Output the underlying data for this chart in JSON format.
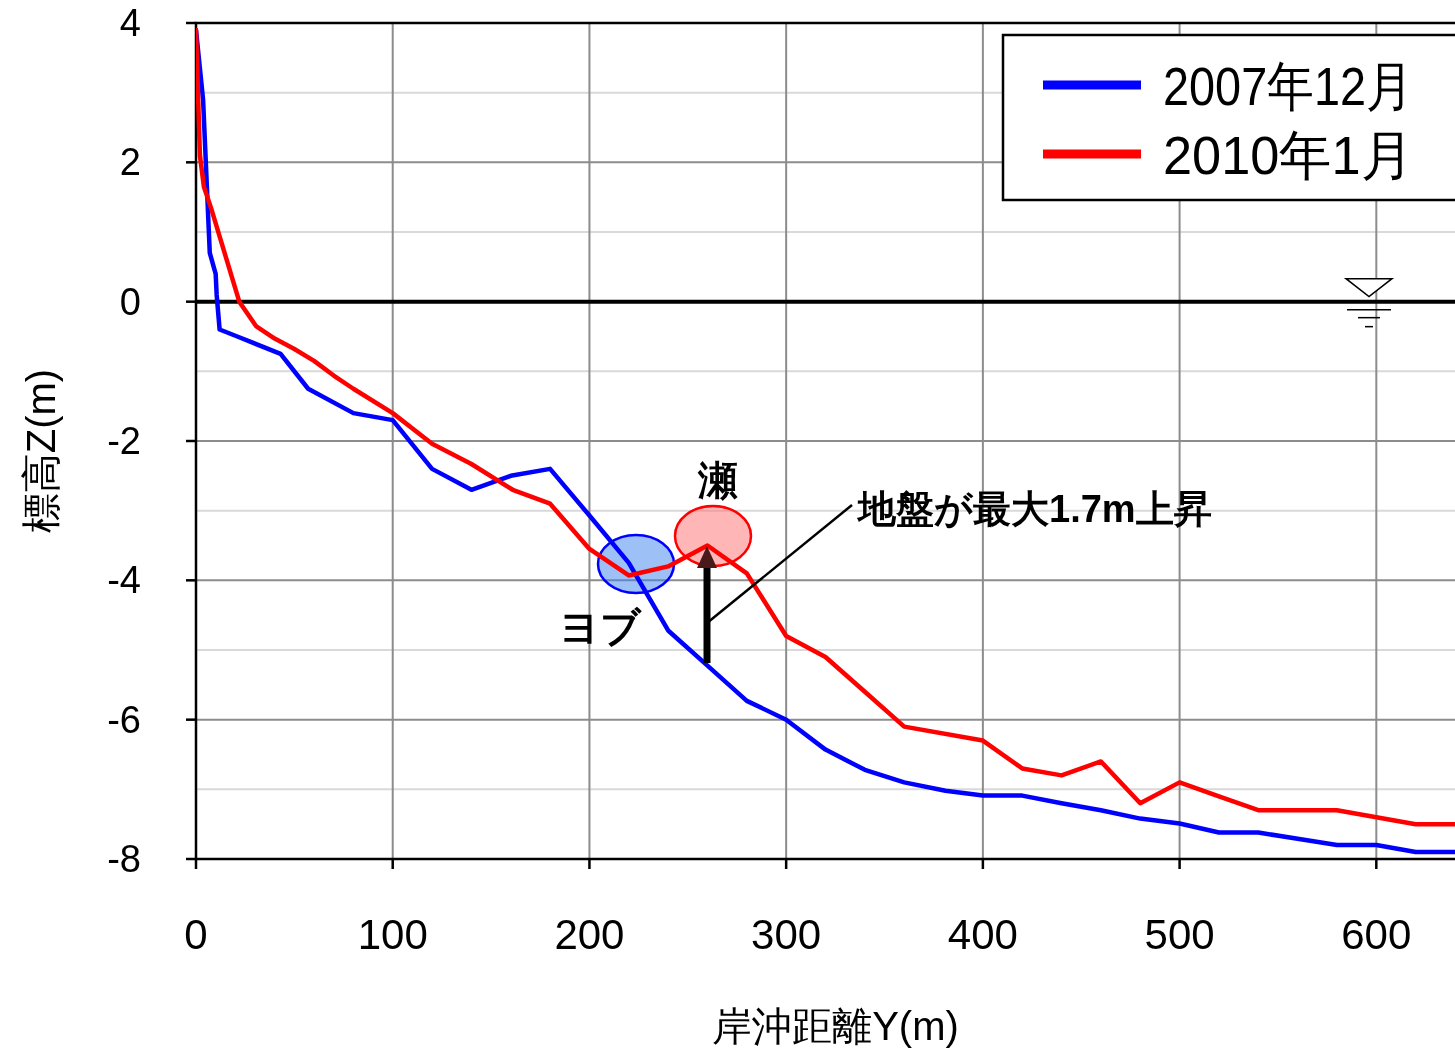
{
  "chart_data": {
    "type": "line",
    "xlabel": "岸沖距離Y(m)",
    "ylabel": "標高Z(m)",
    "xlim": [
      0,
      640
    ],
    "ylim": [
      -8,
      4
    ],
    "xticks": [
      0,
      100,
      200,
      300,
      400,
      500,
      600
    ],
    "yticks": [
      -8,
      -6,
      -4,
      -2,
      0,
      2,
      4
    ],
    "grid": true,
    "legend": "top right",
    "line_style": "solid",
    "marker": "none",
    "series": [
      {
        "name": "2007年12月",
        "color": "#0000ff",
        "x": [
          0,
          3.6,
          7,
          10,
          10.5,
          12,
          21,
          43,
          57,
          80,
          100,
          120,
          140,
          160,
          180,
          200,
          220,
          240,
          259,
          280,
          300,
          320,
          340,
          360,
          381,
          400,
          420,
          440,
          460,
          480,
          500,
          520,
          540,
          560,
          580,
          600,
          620,
          640
        ],
        "values": [
          3.9,
          2.9,
          0.7,
          0.4,
          0.1,
          -0.4,
          -0.5,
          -0.75,
          -1.25,
          -1.6,
          -1.7,
          -2.4,
          -2.7,
          -2.5,
          -2.4,
          -3.07,
          -3.75,
          -4.72,
          -5.2,
          -5.73,
          -6.0,
          -6.43,
          -6.72,
          -6.9,
          -7.02,
          -7.09,
          -7.09,
          -7.2,
          -7.3,
          -7.42,
          -7.49,
          -7.62,
          -7.62,
          -7.71,
          -7.8,
          -7.8,
          -7.9,
          -7.9
        ]
      },
      {
        "name": "2010年1月",
        "color": "#ff0000",
        "x": [
          0,
          2,
          4,
          7.6,
          22,
          30.5,
          40,
          50,
          60,
          70,
          80,
          100,
          120,
          140,
          161,
          180,
          200,
          220,
          240,
          260,
          280,
          300,
          320,
          340,
          360,
          400,
          420,
          440,
          460,
          480,
          500,
          520,
          540,
          580,
          600,
          620,
          640
        ],
        "values": [
          3.9,
          2.1,
          1.65,
          1.35,
          0,
          -0.35,
          -0.53,
          -0.68,
          -0.85,
          -1.06,
          -1.25,
          -1.6,
          -2.04,
          -2.33,
          -2.7,
          -2.9,
          -3.55,
          -3.93,
          -3.8,
          -3.5,
          -3.9,
          -4.8,
          -5.1,
          -5.6,
          -6.1,
          -6.3,
          -6.7,
          -6.8,
          -6.6,
          -7.2,
          -6.9,
          -7.1,
          -7.3,
          -7.3,
          -7.4,
          -7.5,
          -7.5
        ]
      }
    ],
    "ref_lines": [
      {
        "axis": "y",
        "value": 0,
        "color": "#000000"
      }
    ],
    "annotations": [
      "瀬",
      "ヨブ",
      "地盤が最大1.7m上昇"
    ]
  }
}
